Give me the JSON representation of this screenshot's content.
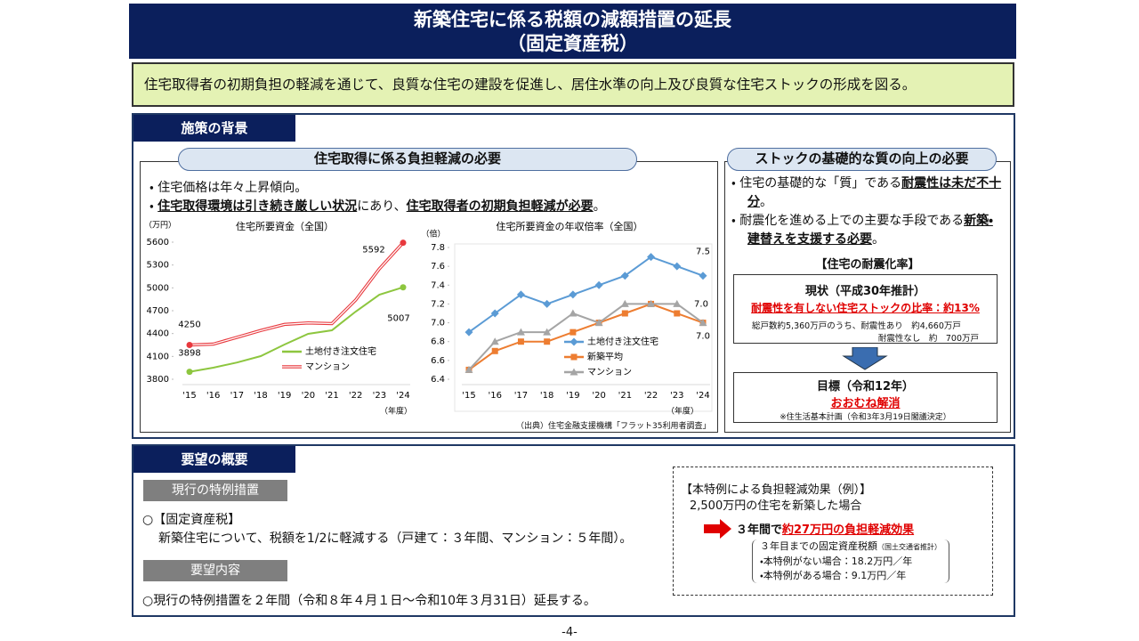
{
  "header": {
    "title": "新築住宅に係る税額の減額措置の延長",
    "subtitle": "（固定資産税）"
  },
  "purpose": "住宅取得者の初期負担の軽減を通じて、良質な住宅の建設を促進し、居住水準の向上及び良質な住宅ストックの形成を図る。",
  "background": {
    "heading": "施策の背景",
    "left": {
      "heading": "住宅取得に係る負担軽減の必要",
      "bullets": [
        [
          "住宅価格は年々上昇傾向。"
        ],
        [
          "住宅取得環境は引き続き厳しい状況",
          "にあり、",
          "住宅取得者の初期負担軽減が必要",
          "。"
        ]
      ],
      "source": "（出典）住宅金融支援機構「フラット35利用者調査」"
    },
    "right": {
      "heading": "ストックの基礎的な質の向上の必要",
      "bullets": [
        [
          "住宅の基礎的な「質」である",
          "耐震性は未だ不十分",
          "。"
        ],
        [
          "耐震化を進める上での主要な手段である",
          "新築・建替えを支援する必要",
          "。"
        ]
      ],
      "rate_title": "【住宅の耐震化率】",
      "current": {
        "title": "現状（平成30年推計）",
        "highlight": "耐震性を有しない住宅ストックの比率：約13%",
        "detail_1": "総戸数約5,360万戸のうち、耐震性あり　約4,660万戸",
        "detail_2": "耐震性なし　約　700万戸"
      },
      "target": {
        "title": "目標（令和12年）",
        "value": "おおむね解消",
        "note": "※住生活基本計画（令和3年3月19日閣議決定）"
      }
    }
  },
  "chart_data": [
    {
      "type": "line",
      "title": "住宅所要資金（全国）",
      "y_unit": "（万円）",
      "x_unit": "（年度）",
      "categories": [
        "'15",
        "'16",
        "'17",
        "'18",
        "'19",
        "'20",
        "'21",
        "'22",
        "'23",
        "'24"
      ],
      "ylim": [
        3800,
        5600
      ],
      "yticks": [
        3800,
        4100,
        4400,
        4700,
        5000,
        5300,
        5600
      ],
      "series": [
        {
          "name": "土地付き注文住宅",
          "color": "#8dc63f",
          "values": [
            3898,
            3952,
            4020,
            4104,
            4256,
            4396,
            4443,
            4688,
            4910,
            5007
          ]
        },
        {
          "name": "マンション",
          "color": "#e8383d",
          "values": [
            4250,
            4262,
            4350,
            4440,
            4520,
            4540,
            4530,
            4840,
            5249,
            5592
          ]
        }
      ]
    },
    {
      "type": "line",
      "title": "住宅所要資金の年収倍率（全国）",
      "y_unit": "（倍）",
      "x_unit": "（年度）",
      "categories": [
        "'15",
        "'16",
        "'17",
        "'18",
        "'19",
        "'20",
        "'21",
        "'22",
        "'23",
        "'24"
      ],
      "ylim": [
        6.4,
        7.8
      ],
      "yticks": [
        6.4,
        6.6,
        6.8,
        {
          "value": 7,
          "label": "7.0"
        },
        7.2,
        7.4,
        7.6,
        7.8
      ],
      "series": [
        {
          "name": "土地付き注文住宅",
          "color": "#5b9bd5",
          "values": [
            6.9,
            7.1,
            7.3,
            7.2,
            7.3,
            7.4,
            7.5,
            7.7,
            7.6,
            7.5
          ]
        },
        {
          "name": "新築平均",
          "color": "#ed7d31",
          "values": [
            6.5,
            6.7,
            6.8,
            6.8,
            6.9,
            7.0,
            7.1,
            7.2,
            7.1,
            7.0
          ],
          "value_labels": [
            null,
            null,
            null,
            null,
            null,
            null,
            null,
            null,
            null,
            "7.0"
          ]
        },
        {
          "name": "マンション",
          "color": "#a5a5a5",
          "values": [
            6.5,
            6.8,
            6.9,
            6.9,
            7.1,
            7.0,
            7.2,
            7.2,
            7.2,
            7.0
          ],
          "value_labels": [
            null,
            null,
            null,
            null,
            null,
            null,
            null,
            null,
            null,
            "7.0"
          ]
        }
      ]
    }
  ],
  "summary": {
    "heading": "要望の概要",
    "current": {
      "label": "現行の特例措置",
      "item": "○【固定資産税】",
      "text": "新築住宅について、税額を1/2に軽減する（戸建て：３年間、マンション：５年間）。"
    },
    "request": {
      "label": "要望内容",
      "text": "○現行の特例措置を２年間（令和８年４月１日～令和10年３月31日）延長する。"
    },
    "effect": {
      "title": "【本特例による負担軽減効果（例）】",
      "lead": "2,500万円の住宅を新築した場合",
      "period": "３年間で",
      "highlight": "約27万円の負担軽減効果",
      "breakdown": {
        "title": "３年目までの固定資産税額",
        "note": "（国土交通省推計）",
        "items": [
          "・本特例がない場合：18.2万円／年",
          "・本特例がある場合：9.1万円／年"
        ]
      }
    }
  },
  "page_number": "-4-"
}
